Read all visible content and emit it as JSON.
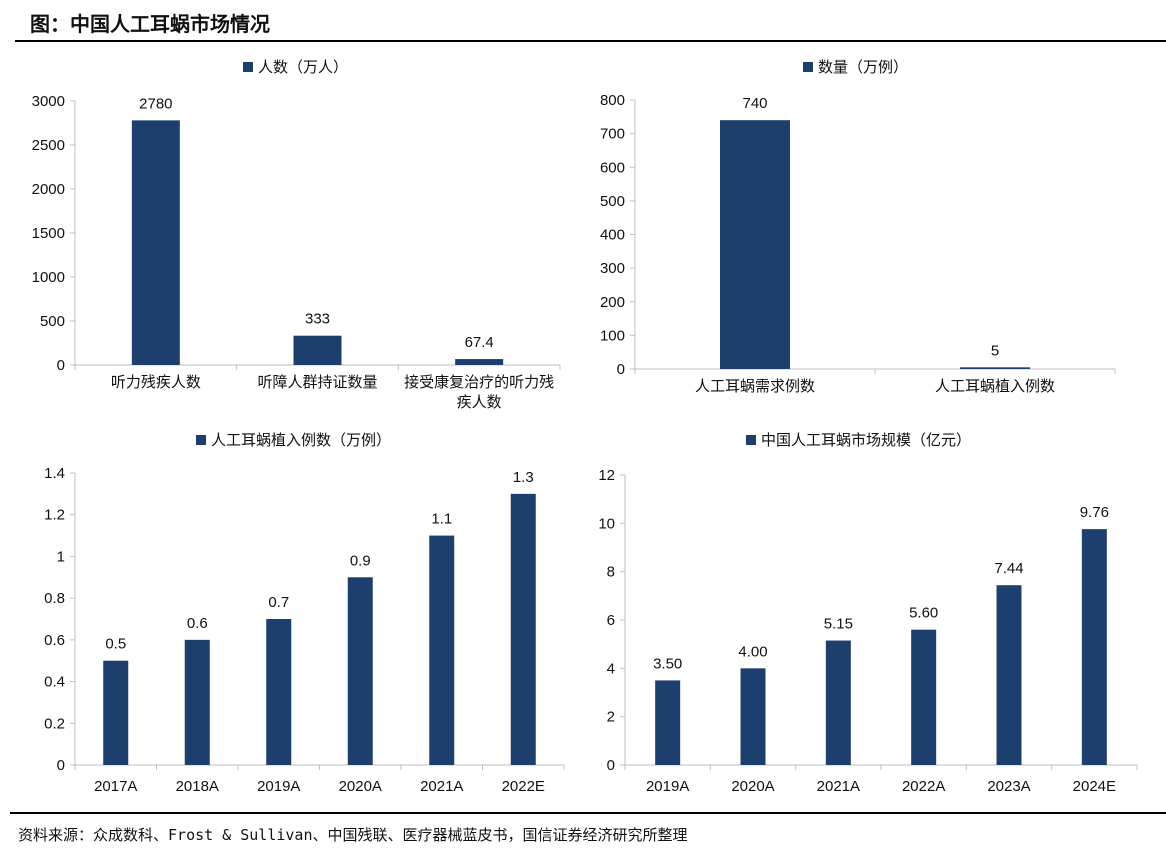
{
  "title": "图：中国人工耳蜗市场情况",
  "source": "资料来源：众成数科、Frost & Sullivan、中国残联、医疗器械蓝皮书，国信证券经济研究所整理",
  "colors": {
    "bar": "#1c3f6e",
    "axis": "#bfbfbf"
  },
  "chart_data": [
    {
      "type": "bar",
      "legend": "人数（万人）",
      "categories": [
        "听力残疾人数",
        "听障人群持证数量",
        "接受康复治疗的听力残疾人数"
      ],
      "values": [
        2780,
        333,
        67.4
      ],
      "labels": [
        "2780",
        "333",
        "67.4"
      ],
      "yticks": [
        "0",
        "500",
        "1000",
        "1500",
        "2000",
        "2500",
        "3000"
      ],
      "ylim": [
        0,
        3000
      ],
      "legend_position": "top-center"
    },
    {
      "type": "bar",
      "legend": "数量（万例）",
      "categories": [
        "人工耳蜗需求例数",
        "人工耳蜗植入例数"
      ],
      "values": [
        740,
        5
      ],
      "labels": [
        "740",
        "5"
      ],
      "yticks": [
        "0",
        "100",
        "200",
        "300",
        "400",
        "500",
        "600",
        "700",
        "800"
      ],
      "ylim": [
        0,
        800
      ],
      "legend_position": "top-center"
    },
    {
      "type": "bar",
      "legend": "人工耳蜗植入例数（万例）",
      "categories": [
        "2017A",
        "2018A",
        "2019A",
        "2020A",
        "2021A",
        "2022E"
      ],
      "values": [
        0.5,
        0.6,
        0.7,
        0.9,
        1.1,
        1.3
      ],
      "labels": [
        "0.5",
        "0.6",
        "0.7",
        "0.9",
        "1.1",
        "1.3"
      ],
      "yticks": [
        "0",
        "0.2",
        "0.4",
        "0.6",
        "0.8",
        "1",
        "1.2",
        "1.4"
      ],
      "ylim": [
        0,
        1.4
      ],
      "legend_position": "top-center"
    },
    {
      "type": "bar",
      "legend": "中国人工耳蜗市场规模（亿元）",
      "categories": [
        "2019A",
        "2020A",
        "2021A",
        "2022A",
        "2023A",
        "2024E"
      ],
      "values": [
        3.5,
        4.0,
        5.15,
        5.6,
        7.44,
        9.76
      ],
      "labels": [
        "3.50",
        "4.00",
        "5.15",
        "5.60",
        "7.44",
        "9.76"
      ],
      "yticks": [
        "0",
        "2",
        "4",
        "6",
        "8",
        "10",
        "12"
      ],
      "ylim": [
        0,
        12
      ],
      "legend_position": "top-center"
    }
  ]
}
